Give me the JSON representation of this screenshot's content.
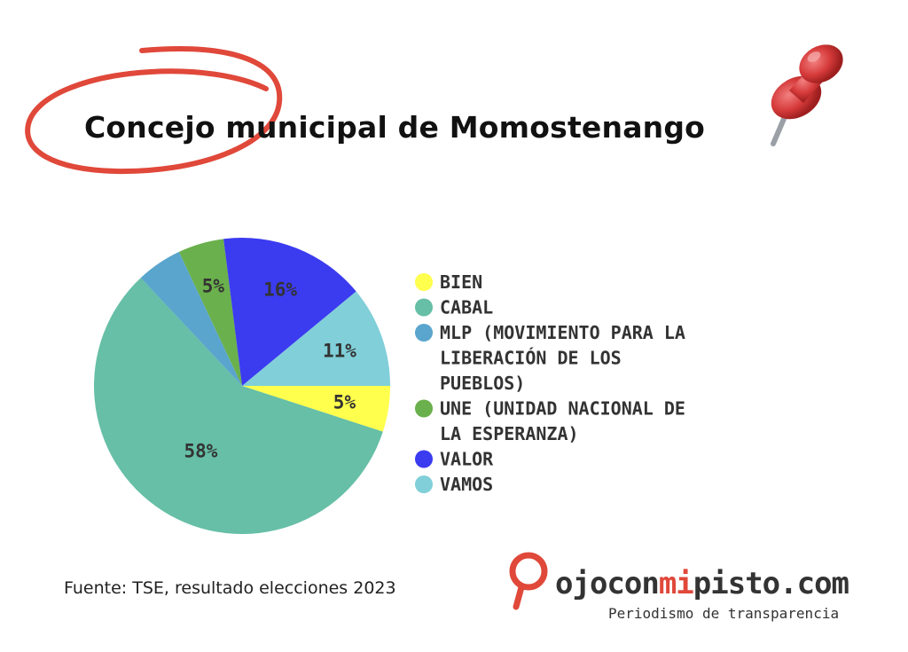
{
  "title": "Concejo municipal de Momostenango",
  "source": "Fuente: TSE, resultado elecciones 2023",
  "brand": {
    "name_parts": [
      "ojocon",
      "mi",
      "pisto",
      ".com"
    ],
    "tagline": "Periodismo de transparencia",
    "colors": {
      "dark": "#333333",
      "red": "#e0483a"
    }
  },
  "decorations": {
    "circle_color": "#e0483a",
    "icon": "pushpin-icon"
  },
  "chart_data": {
    "type": "pie",
    "title": "",
    "legend_position": "right",
    "slices": [
      {
        "name": "BIEN",
        "value": 5,
        "label": "5%",
        "color": "#ffff4d"
      },
      {
        "name": "CABAL",
        "value": 58,
        "label": "58%",
        "color": "#66bfa6"
      },
      {
        "name": "MLP (MOVIMIENTO PARA LA LIBERACIÓN DE LOS PUEBLOS)",
        "value": 5,
        "label": "",
        "color": "#5aa5cd"
      },
      {
        "name": "UNE (UNIDAD NACIONAL DE LA ESPERANZA)",
        "value": 5,
        "label": "5%",
        "color": "#6ab04c"
      },
      {
        "name": "VALOR",
        "value": 16,
        "label": "16%",
        "color": "#3b3bf0"
      },
      {
        "name": "VAMOS",
        "value": 11,
        "label": "11%",
        "color": "#80cfd9"
      }
    ],
    "legend_lines": [
      [
        "BIEN"
      ],
      [
        "CABAL"
      ],
      [
        "MLP (MOVIMIENTO PARA LA",
        "LIBERACIÓN DE LOS",
        "PUEBLOS)"
      ],
      [
        "UNE (UNIDAD NACIONAL DE",
        "LA ESPERANZA)"
      ],
      [
        "VALOR"
      ],
      [
        "VAMOS"
      ]
    ]
  }
}
